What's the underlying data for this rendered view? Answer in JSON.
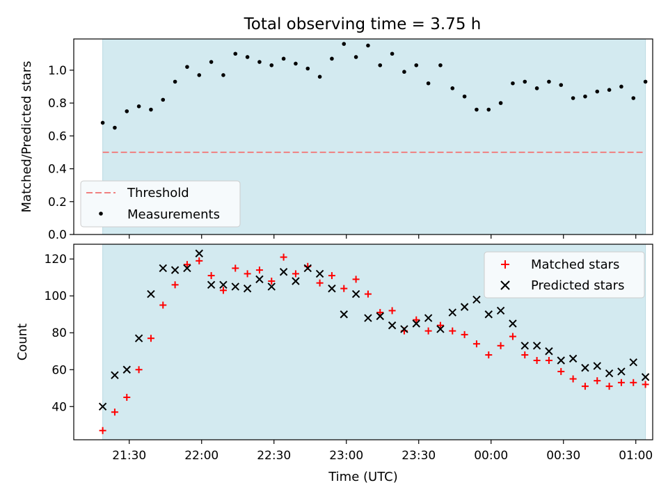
{
  "chart_data": [
    {
      "type": "scatter",
      "title": "Total observing time = 3.75 h",
      "xlabel": "",
      "ylabel": "Matched/Predicted stars",
      "ylim": [
        0,
        1.19
      ],
      "yticks": [
        0.0,
        0.2,
        0.4,
        0.6,
        0.8,
        1.0
      ],
      "ytick_labels": [
        "0.0",
        "0.2",
        "0.4",
        "0.6",
        "0.8",
        "1.0"
      ],
      "x_range": [
        "21:07",
        "01:07"
      ],
      "observing_window": [
        "21:19",
        "01:04"
      ],
      "legend_position": "lower-left",
      "threshold": {
        "name": "Threshold",
        "value": 0.5,
        "color": "#f08080",
        "style": "dashed"
      },
      "series": [
        {
          "name": "Measurements",
          "color": "#000000",
          "marker": "dot",
          "x": [
            "21:19",
            "21:24",
            "21:29",
            "21:34",
            "21:39",
            "21:44",
            "21:49",
            "21:54",
            "21:59",
            "22:04",
            "22:09",
            "22:14",
            "22:19",
            "22:24",
            "22:29",
            "22:34",
            "22:39",
            "22:44",
            "22:49",
            "22:54",
            "22:59",
            "23:04",
            "23:09",
            "23:14",
            "23:19",
            "23:24",
            "23:29",
            "23:34",
            "23:39",
            "23:44",
            "23:49",
            "23:54",
            "23:59",
            "00:04",
            "00:09",
            "00:14",
            "00:19",
            "00:24",
            "00:29",
            "00:34",
            "00:39",
            "00:44",
            "00:49",
            "00:54",
            "00:59",
            "01:04"
          ],
          "values": [
            0.68,
            0.65,
            0.75,
            0.78,
            0.76,
            0.82,
            0.93,
            1.02,
            0.97,
            1.05,
            0.97,
            1.1,
            1.08,
            1.05,
            1.03,
            1.07,
            1.04,
            1.01,
            0.96,
            1.07,
            1.16,
            1.08,
            1.15,
            1.03,
            1.1,
            0.99,
            1.03,
            0.92,
            1.03,
            0.89,
            0.84,
            0.76,
            0.76,
            0.8,
            0.92,
            0.93,
            0.89,
            0.93,
            0.91,
            0.83,
            0.84,
            0.87,
            0.88,
            0.9,
            0.83,
            0.93
          ]
        }
      ]
    },
    {
      "type": "scatter",
      "title": "",
      "xlabel": "Time (UTC)",
      "ylabel": "Count",
      "ylim": [
        22,
        128
      ],
      "yticks": [
        40,
        60,
        80,
        100,
        120
      ],
      "ytick_labels": [
        "40",
        "60",
        "80",
        "100",
        "120"
      ],
      "xticks": [
        "21:30",
        "22:00",
        "22:30",
        "23:00",
        "23:30",
        "00:00",
        "00:30",
        "01:00"
      ],
      "x_range": [
        "21:07",
        "01:07"
      ],
      "observing_window": [
        "21:19",
        "01:04"
      ],
      "legend_position": "upper-right",
      "series": [
        {
          "name": "Matched stars",
          "color": "#ff0000",
          "marker": "plus",
          "x": [
            "21:19",
            "21:24",
            "21:29",
            "21:34",
            "21:39",
            "21:44",
            "21:49",
            "21:54",
            "21:59",
            "22:04",
            "22:09",
            "22:14",
            "22:19",
            "22:24",
            "22:29",
            "22:34",
            "22:39",
            "22:44",
            "22:49",
            "22:54",
            "22:59",
            "23:04",
            "23:09",
            "23:14",
            "23:19",
            "23:24",
            "23:29",
            "23:34",
            "23:39",
            "23:44",
            "23:49",
            "23:54",
            "23:59",
            "00:04",
            "00:09",
            "00:14",
            "00:19",
            "00:24",
            "00:29",
            "00:34",
            "00:39",
            "00:44",
            "00:49",
            "00:54",
            "00:59",
            "01:04"
          ],
          "values": [
            27,
            37,
            45,
            60,
            77,
            95,
            106,
            117,
            119,
            111,
            103,
            115,
            112,
            114,
            108,
            121,
            112,
            116,
            107,
            111,
            104,
            109,
            101,
            91,
            92,
            81,
            87,
            81,
            84,
            81,
            79,
            74,
            68,
            73,
            78,
            68,
            65,
            65,
            59,
            55,
            51,
            54,
            51,
            53,
            53,
            52
          ]
        },
        {
          "name": "Predicted stars",
          "color": "#000000",
          "marker": "x",
          "x": [
            "21:19",
            "21:24",
            "21:29",
            "21:34",
            "21:39",
            "21:44",
            "21:49",
            "21:54",
            "21:59",
            "22:04",
            "22:09",
            "22:14",
            "22:19",
            "22:24",
            "22:29",
            "22:34",
            "22:39",
            "22:44",
            "22:49",
            "22:54",
            "22:59",
            "23:04",
            "23:09",
            "23:14",
            "23:19",
            "23:24",
            "23:29",
            "23:34",
            "23:39",
            "23:44",
            "23:49",
            "23:54",
            "23:59",
            "00:04",
            "00:09",
            "00:14",
            "00:19",
            "00:24",
            "00:29",
            "00:34",
            "00:39",
            "00:44",
            "00:49",
            "00:54",
            "00:59",
            "01:04"
          ],
          "values": [
            40,
            57,
            60,
            77,
            101,
            115,
            114,
            115,
            123,
            106,
            106,
            105,
            104,
            109,
            105,
            113,
            108,
            115,
            112,
            104,
            90,
            101,
            88,
            89,
            84,
            82,
            85,
            88,
            82,
            91,
            94,
            98,
            90,
            92,
            85,
            73,
            73,
            70,
            65,
            66,
            61,
            62,
            58,
            59,
            64,
            56
          ]
        }
      ]
    }
  ],
  "colors": {
    "window_fill": "#d3eaf0",
    "window_edge": "#bcdbe3"
  }
}
